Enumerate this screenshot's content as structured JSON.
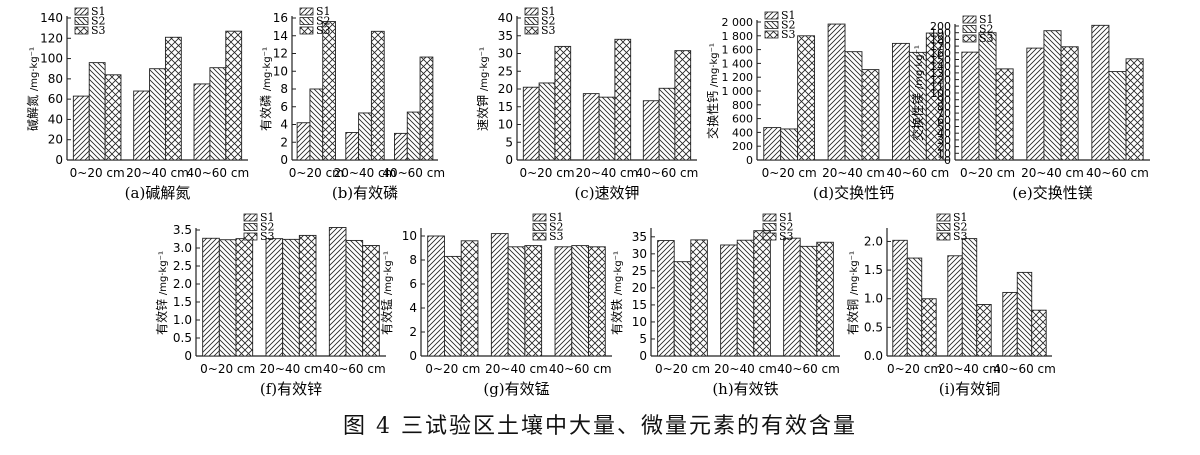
{
  "figure_caption": "图 4 三试验区土壤中大量、微量元素的有效含量",
  "colors": {
    "axis": "#222222",
    "bar_stroke": "#222222",
    "background": "#ffffff"
  },
  "series_patterns": {
    "S1": "hatch-forward",
    "S2": "hatch-backward",
    "S3": "crosshatch"
  },
  "chart_data": [
    {
      "type": "bar",
      "panel": "a",
      "caption": "(a)碱解氮",
      "ylabel": "碱解氮",
      "yunit": "/mg·kg⁻¹",
      "categories": [
        "0~20 cm",
        "20~40 cm",
        "40~60 cm"
      ],
      "ylim": [
        0,
        140
      ],
      "yticks": [
        0,
        20,
        40,
        60,
        80,
        100,
        120,
        140
      ],
      "ytick_labels": [
        "0",
        "20",
        "40",
        "60",
        "80",
        "100",
        "120",
        "140"
      ],
      "legend": [
        "S1",
        "S2",
        "S3"
      ],
      "series": [
        {
          "name": "S1",
          "values": [
            63,
            68,
            75
          ]
        },
        {
          "name": "S2",
          "values": [
            96,
            90,
            91
          ]
        },
        {
          "name": "S3",
          "values": [
            84,
            121,
            127
          ]
        }
      ]
    },
    {
      "type": "bar",
      "panel": "b",
      "caption": "(b)有效磷",
      "ylabel": "有效磷",
      "yunit": "/mg·kg⁻¹",
      "categories": [
        "0~20 cm",
        "20~40 cm",
        "40~60 cm"
      ],
      "ylim": [
        0,
        16
      ],
      "yticks": [
        0,
        2,
        4,
        6,
        8,
        10,
        12,
        14,
        16
      ],
      "ytick_labels": [
        "0",
        "2",
        "4",
        "6",
        "8",
        "10",
        "12",
        "14",
        "16"
      ],
      "legend": [
        "S1",
        "S2",
        "S3"
      ],
      "series": [
        {
          "name": "S1",
          "values": [
            4.2,
            3.1,
            3.0
          ]
        },
        {
          "name": "S2",
          "values": [
            8.0,
            5.3,
            5.4
          ]
        },
        {
          "name": "S3",
          "values": [
            15.6,
            14.5,
            11.6
          ]
        }
      ]
    },
    {
      "type": "bar",
      "panel": "c",
      "caption": "(c)速效钾",
      "ylabel": "速效钾",
      "yunit": "/mg·kg⁻¹",
      "categories": [
        "0~20 cm",
        "20~40 cm",
        "40~60 cm"
      ],
      "ylim": [
        0,
        40
      ],
      "yticks": [
        0,
        5,
        10,
        15,
        20,
        25,
        30,
        35,
        40
      ],
      "ytick_labels": [
        "0",
        "5",
        "10",
        "15",
        "20",
        "25",
        "30",
        "35",
        "40"
      ],
      "legend": [
        "S1",
        "S2",
        "S3"
      ],
      "series": [
        {
          "name": "S1",
          "values": [
            20.5,
            18.7,
            16.7
          ]
        },
        {
          "name": "S2",
          "values": [
            21.7,
            17.7,
            20.2
          ]
        },
        {
          "name": "S3",
          "values": [
            32.0,
            34.0,
            30.8
          ]
        }
      ]
    },
    {
      "type": "bar",
      "panel": "d",
      "caption": "(d)交换性钙",
      "ylabel": "交换性钙",
      "yunit": "/mg·kg⁻¹",
      "categories": [
        "0~20 cm",
        "20~40 cm",
        "40~60 cm"
      ],
      "ylim": [
        0,
        2000
      ],
      "yticks": [
        0,
        200,
        400,
        600,
        800,
        1000,
        1200,
        1400,
        1600,
        1800,
        2000
      ],
      "ytick_labels": [
        "0",
        "200",
        "400",
        "600",
        "800",
        "1 000",
        "1 200",
        "1 400",
        "1 600",
        "1 800",
        "2 000"
      ],
      "legend": [
        "S1",
        "S2",
        "S3"
      ],
      "series": [
        {
          "name": "S1",
          "values": [
            470,
            1970,
            1690
          ]
        },
        {
          "name": "S2",
          "values": [
            450,
            1570,
            1560
          ]
        },
        {
          "name": "S3",
          "values": [
            1800,
            1310,
            1840
          ]
        }
      ]
    },
    {
      "type": "bar",
      "panel": "e",
      "caption": "(e)交换性镁",
      "ylabel": "交换性镁",
      "yunit": "/mg·kg⁻¹",
      "categories": [
        "0~20 cm",
        "20~40 cm",
        "40~60 cm"
      ],
      "ylim": [
        0,
        200
      ],
      "yticks": [
        0,
        10,
        20,
        30,
        40,
        50,
        60,
        70,
        80,
        90,
        100,
        110,
        120,
        130,
        140,
        150,
        160,
        170,
        180,
        190,
        200
      ],
      "ytick_labels": [
        "0",
        "10",
        "20",
        "30",
        "40",
        "50",
        "60",
        "70",
        "80",
        "90",
        "100",
        "110",
        "120",
        "130",
        "140",
        "150",
        "160",
        "170",
        "180",
        "190",
        "200"
      ],
      "legend": [
        "S1",
        "S2",
        "S3"
      ],
      "series": [
        {
          "name": "S1",
          "values": [
            161,
            167,
            201
          ]
        },
        {
          "name": "S2",
          "values": [
            190,
            193,
            132
          ]
        },
        {
          "name": "S3",
          "values": [
            136,
            169,
            151
          ]
        }
      ]
    },
    {
      "type": "bar",
      "panel": "f",
      "caption": "(f)有效锌",
      "ylabel": "有效锌",
      "yunit": "/mg·kg⁻¹",
      "categories": [
        "0~20 cm",
        "20~40 cm",
        "40~60 cm"
      ],
      "ylim": [
        0,
        3.5
      ],
      "yticks": [
        0,
        0.5,
        1.0,
        1.5,
        2.0,
        2.5,
        3.0,
        3.5
      ],
      "ytick_labels": [
        "0",
        "0.5",
        "1.0",
        "1.5",
        "2.0",
        "2.5",
        "3.0",
        "3.5"
      ],
      "legend": [
        "S1",
        "S2",
        "S3"
      ],
      "series": [
        {
          "name": "S1",
          "values": [
            3.27,
            3.26,
            3.57
          ]
        },
        {
          "name": "S2",
          "values": [
            3.23,
            3.24,
            3.21
          ]
        },
        {
          "name": "S3",
          "values": [
            3.26,
            3.35,
            3.07
          ]
        }
      ]
    },
    {
      "type": "bar",
      "panel": "g",
      "caption": "(g)有效锰",
      "ylabel": "有效锰",
      "yunit": "/mg·kg⁻¹",
      "categories": [
        "0~20 cm",
        "20~40 cm",
        "40~60 cm"
      ],
      "ylim": [
        0,
        10.5
      ],
      "yticks": [
        0,
        2,
        4,
        6,
        8,
        10
      ],
      "ytick_labels": [
        "0",
        "2",
        "4",
        "6",
        "8",
        "10"
      ],
      "legend": [
        "S1",
        "S2",
        "S3"
      ],
      "series": [
        {
          "name": "S1",
          "values": [
            10.0,
            10.2,
            9.1
          ]
        },
        {
          "name": "S2",
          "values": [
            8.3,
            9.1,
            9.2
          ]
        },
        {
          "name": "S3",
          "values": [
            9.6,
            9.2,
            9.1
          ]
        }
      ]
    },
    {
      "type": "bar",
      "panel": "h",
      "caption": "(h)有效铁",
      "ylabel": "有效铁",
      "yunit": "/mg·kg⁻¹",
      "categories": [
        "0~20 cm",
        "20~40 cm",
        "40~60 cm"
      ],
      "ylim": [
        0,
        37
      ],
      "yticks": [
        0,
        5,
        10,
        15,
        20,
        25,
        30,
        35
      ],
      "ytick_labels": [
        "0",
        "5",
        "10",
        "15",
        "20",
        "25",
        "30",
        "35"
      ],
      "legend": [
        "S1",
        "S2",
        "S3"
      ],
      "series": [
        {
          "name": "S1",
          "values": [
            33.9,
            32.6,
            34.6
          ]
        },
        {
          "name": "S2",
          "values": [
            27.7,
            34.0,
            32.2
          ]
        },
        {
          "name": "S3",
          "values": [
            34.1,
            36.8,
            33.4
          ]
        }
      ]
    },
    {
      "type": "bar",
      "panel": "i",
      "caption": "(i)有效铜",
      "ylabel": "有效铜",
      "yunit": "/mg·kg⁻¹",
      "categories": [
        "0~20 cm",
        "20~40 cm",
        "40~60 cm"
      ],
      "ylim": [
        0,
        2.2
      ],
      "yticks": [
        0,
        0.5,
        1.0,
        1.5,
        2.0
      ],
      "ytick_labels": [
        "0.0",
        "0.5",
        "1.0",
        "1.5",
        "2.0"
      ],
      "legend": [
        "S1",
        "S2",
        "S3"
      ],
      "series": [
        {
          "name": "S1",
          "values": [
            2.02,
            1.75,
            1.11
          ]
        },
        {
          "name": "S2",
          "values": [
            1.71,
            2.05,
            1.46
          ]
        },
        {
          "name": "S3",
          "values": [
            1.0,
            0.9,
            0.8
          ]
        }
      ]
    }
  ]
}
